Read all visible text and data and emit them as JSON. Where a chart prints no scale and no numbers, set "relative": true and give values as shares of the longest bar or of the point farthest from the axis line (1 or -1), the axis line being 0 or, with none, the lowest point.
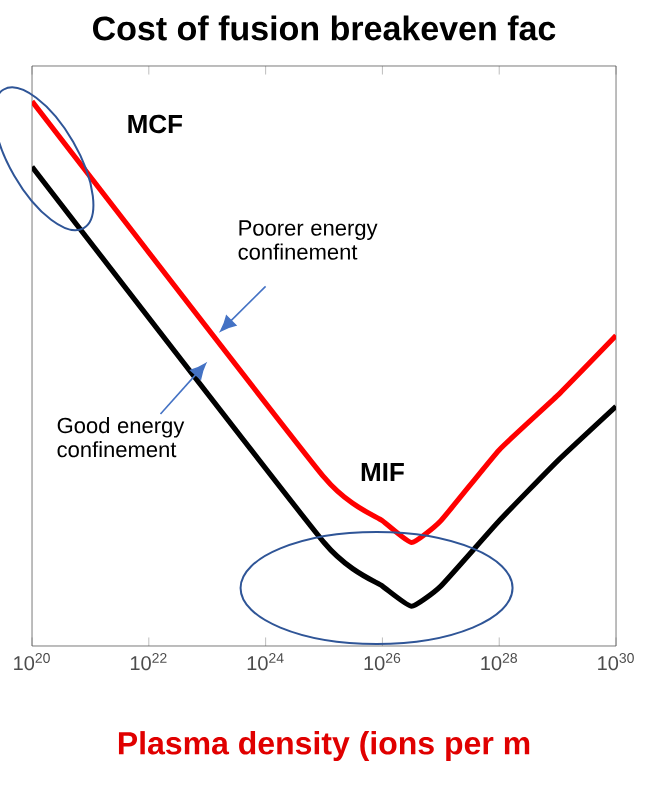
{
  "chart_data": {
    "type": "line",
    "title": "Cost of fusion breakeven fac",
    "xlabel": "Plasma density (ions per m",
    "log": "x",
    "relative": true,
    "x": [
      1e+20,
      1e+25,
      1e+26,
      3.16e+26,
      1e+27,
      1e+28,
      1e+29,
      1e+30
    ],
    "xlim": [
      1e+20,
      1e+30
    ],
    "xticks": [
      {
        "value": 1e+20,
        "label": "10$^{20}$"
      },
      {
        "value": 1e+22,
        "label": "10$^{22}$"
      },
      {
        "value": 1e+24,
        "label": "10$^{24}$"
      },
      {
        "value": 1e+26,
        "label": "10$^{26}$"
      },
      {
        "value": 1e+28,
        "label": "10$^{28}$"
      },
      {
        "value": 1e+30,
        "label": "10$^{30}$"
      }
    ],
    "series": [
      {
        "color": "#ff0000",
        "values": [
          1.0,
          0.31,
          0.23,
          0.19,
          0.23,
          0.36,
          0.46,
          0.57
        ]
      },
      {
        "color": "#000000",
        "values": [
          0.88,
          0.19,
          0.11,
          0.073,
          0.11,
          0.23,
          0.34,
          0.44
        ]
      }
    ],
    "annotations": [
      "MCF",
      "Poorer energy confinement",
      "Good energy confinement",
      "MIF"
    ],
    "grid": false,
    "marker": "none",
    "line_style": "solid"
  }
}
